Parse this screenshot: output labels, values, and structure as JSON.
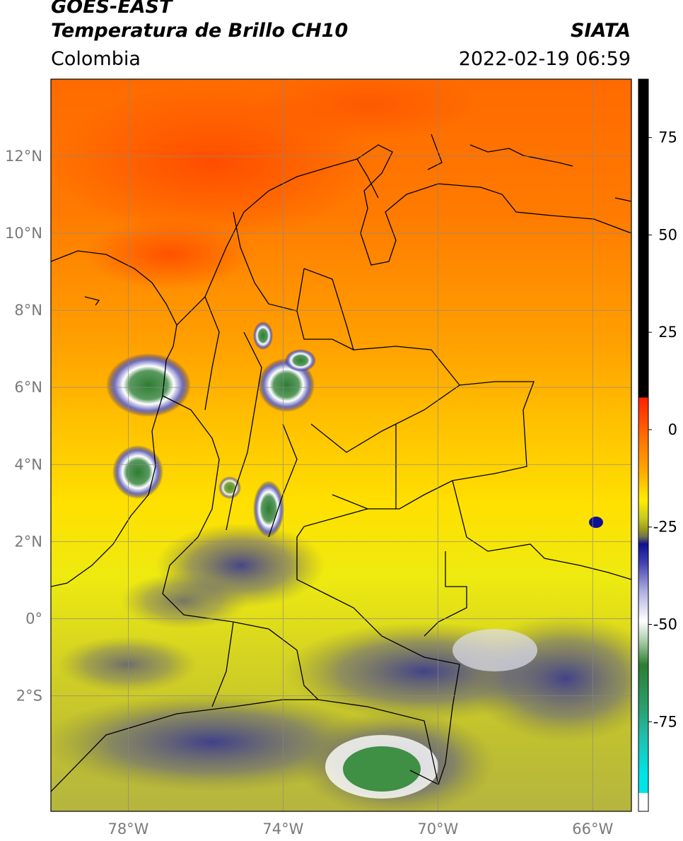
{
  "header": {
    "satellite": "GOES-EAST",
    "product": "Temperatura de Brillo CH10",
    "org": "SIATA",
    "region": "Colombia",
    "datetime": "2022-02-19 06:59"
  },
  "map": {
    "lon_range": [
      -80,
      -65
    ],
    "lat_range": [
      -5,
      14
    ],
    "lat_ticks": [
      {
        "value": 12,
        "label": "12°N"
      },
      {
        "value": 10,
        "label": "10°N"
      },
      {
        "value": 8,
        "label": "8°N"
      },
      {
        "value": 6,
        "label": "6°N"
      },
      {
        "value": 4,
        "label": "4°N"
      },
      {
        "value": 2,
        "label": "2°N"
      },
      {
        "value": 0,
        "label": "0°"
      },
      {
        "value": -2,
        "label": "2°S"
      }
    ],
    "lon_ticks": [
      {
        "value": -78,
        "label": "78°W"
      },
      {
        "value": -74,
        "label": "74°W"
      },
      {
        "value": -70,
        "label": "70°W"
      },
      {
        "value": -66,
        "label": "66°W"
      }
    ],
    "grid": true
  },
  "colorbar": {
    "range": [
      -98,
      90
    ],
    "ticks": [
      {
        "value": 75,
        "label": "75"
      },
      {
        "value": 50,
        "label": "50"
      },
      {
        "value": 25,
        "label": "25"
      },
      {
        "value": 0,
        "label": "0"
      },
      {
        "value": -25,
        "label": "-25"
      },
      {
        "value": -50,
        "label": "-50"
      },
      {
        "value": -75,
        "label": "-75"
      }
    ],
    "colors": {
      "black": "#000000",
      "red": "#ff2000",
      "orange": "#ff8c00",
      "yellow": "#ffee00",
      "olive": "#9a9a20",
      "navy": "#101090",
      "white": "#ffffff",
      "green": "#2e7d32",
      "cyan": "#00e5e5"
    }
  }
}
